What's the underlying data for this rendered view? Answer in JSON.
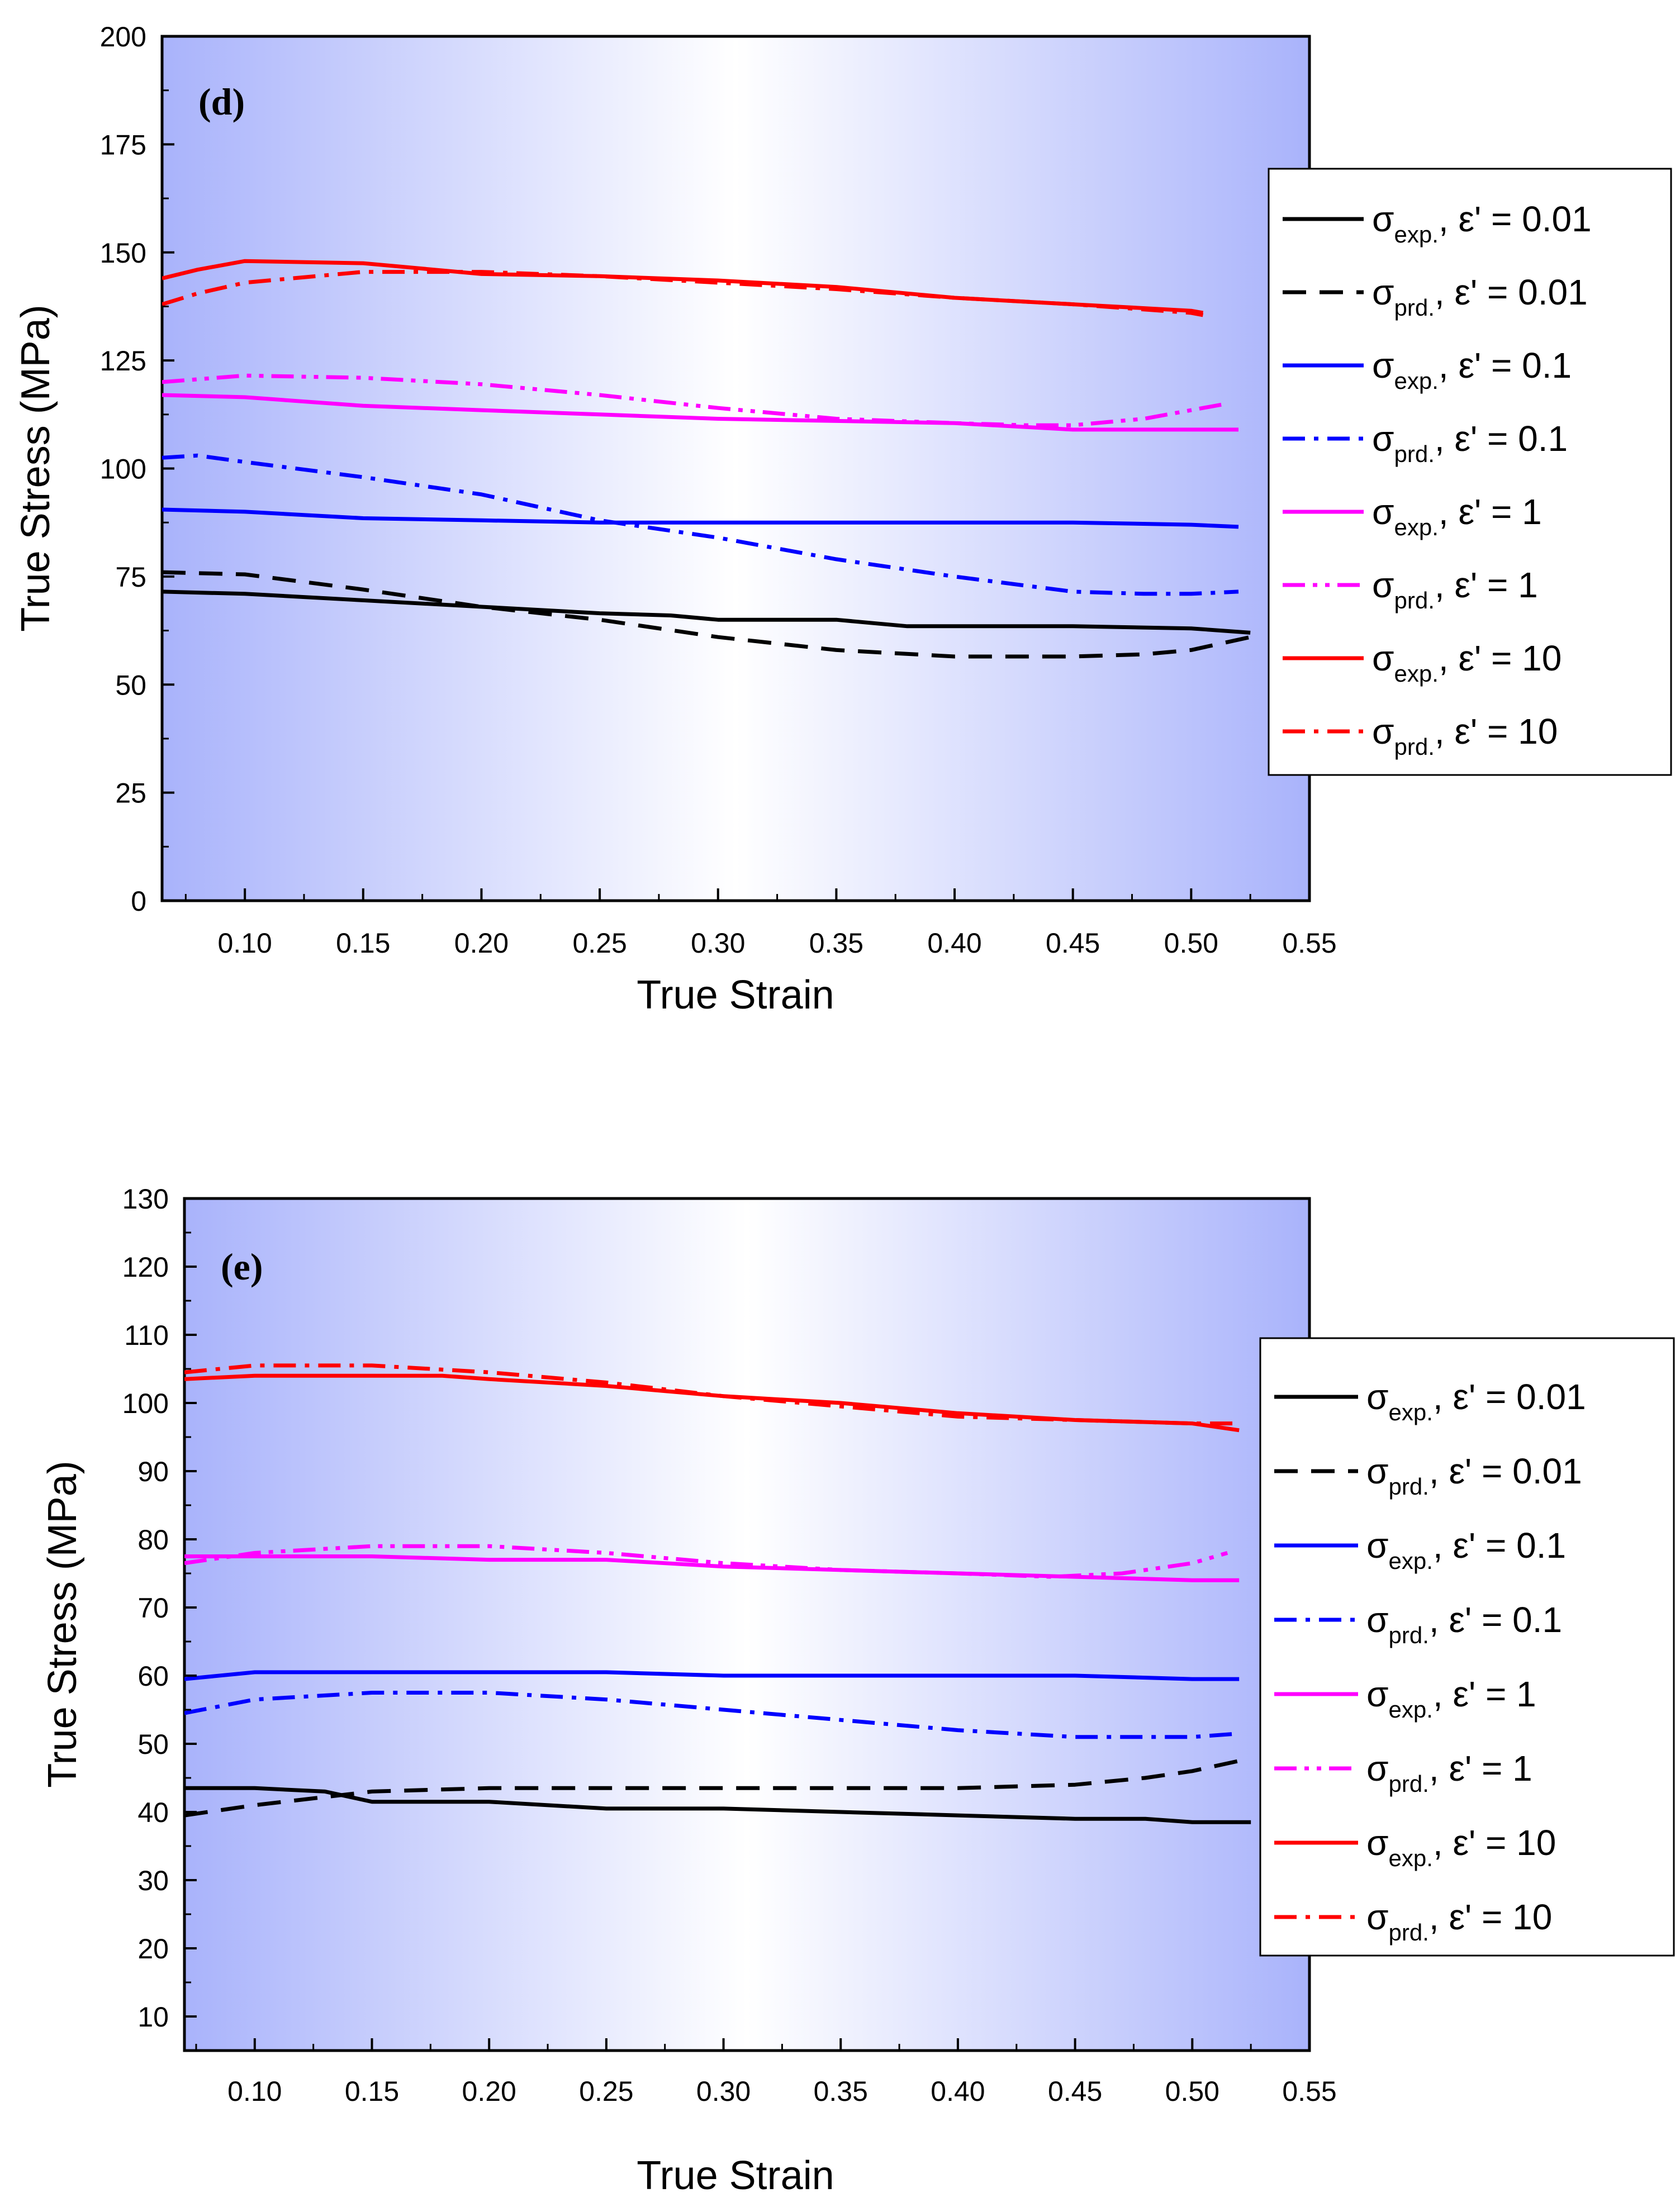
{
  "chart_data": [
    {
      "type": "line",
      "panel_label": "(d)",
      "xlabel": "True Strain",
      "ylabel": "True Stress (MPa)",
      "xlim": [
        0.065,
        0.55
      ],
      "ylim": [
        0,
        200
      ],
      "xticks": [
        "0.10",
        "0.15",
        "0.20",
        "0.25",
        "0.30",
        "0.35",
        "0.40",
        "0.45",
        "0.50",
        "0.55"
      ],
      "yticks": [
        "0",
        "25",
        "50",
        "75",
        "100",
        "125",
        "150",
        "175",
        "200"
      ],
      "legend_position": "right",
      "series": [
        {
          "name": "σexp., ε' = 0.01",
          "sigma": "σ",
          "sub": "exp.",
          "rate": ", ε' = 0.01",
          "color": "#000000",
          "style": "solid",
          "x": [
            0.065,
            0.1,
            0.15,
            0.2,
            0.25,
            0.28,
            0.3,
            0.35,
            0.38,
            0.4,
            0.45,
            0.5,
            0.525
          ],
          "y": [
            71.5,
            71,
            69.5,
            68,
            66.5,
            66,
            65,
            65,
            63.5,
            63.5,
            63.5,
            63,
            62
          ]
        },
        {
          "name": "σprd., ε' = 0.01",
          "sigma": "σ",
          "sub": "prd.",
          "rate": ", ε' = 0.01",
          "color": "#000000",
          "style": "dash",
          "x": [
            0.065,
            0.1,
            0.15,
            0.2,
            0.25,
            0.3,
            0.35,
            0.4,
            0.45,
            0.48,
            0.5,
            0.525
          ],
          "y": [
            76,
            75.5,
            72,
            68,
            65,
            61,
            58,
            56.5,
            56.5,
            57,
            58,
            61
          ]
        },
        {
          "name": "σexp., ε' = 0.1",
          "sigma": "σ",
          "sub": "exp.",
          "rate": ", ε' = 0.1",
          "color": "#0000ff",
          "style": "solid",
          "x": [
            0.065,
            0.1,
            0.15,
            0.2,
            0.25,
            0.3,
            0.35,
            0.4,
            0.45,
            0.5,
            0.52
          ],
          "y": [
            90.5,
            90,
            88.5,
            88,
            87.5,
            87.5,
            87.5,
            87.5,
            87.5,
            87,
            86.5
          ]
        },
        {
          "name": "σprd., ε' = 0.1",
          "sigma": "σ",
          "sub": "prd.",
          "rate": ", ε' = 0.1",
          "color": "#0000ff",
          "style": "dashdot",
          "x": [
            0.065,
            0.08,
            0.1,
            0.15,
            0.2,
            0.25,
            0.3,
            0.35,
            0.4,
            0.45,
            0.48,
            0.5,
            0.52
          ],
          "y": [
            102.5,
            103,
            101.5,
            98,
            94,
            88,
            84,
            79,
            75,
            71.5,
            71,
            71,
            71.5
          ]
        },
        {
          "name": "σexp., ε' = 1",
          "sigma": "σ",
          "sub": "exp.",
          "rate": ", ε' = 1",
          "color": "#ff00ff",
          "style": "solid",
          "x": [
            0.065,
            0.1,
            0.15,
            0.2,
            0.25,
            0.3,
            0.35,
            0.4,
            0.45,
            0.5,
            0.52
          ],
          "y": [
            117,
            116.5,
            114.5,
            113.5,
            112.5,
            111.5,
            111,
            110.5,
            109,
            109,
            109
          ]
        },
        {
          "name": "σprd., ε' = 1",
          "sigma": "σ",
          "sub": "prd.",
          "rate": ", ε' = 1",
          "color": "#ff00ff",
          "style": "dashdotdot",
          "x": [
            0.065,
            0.1,
            0.15,
            0.2,
            0.25,
            0.3,
            0.35,
            0.4,
            0.43,
            0.45,
            0.48,
            0.5,
            0.515
          ],
          "y": [
            120,
            121.5,
            121,
            119.5,
            117,
            114,
            111.5,
            110.5,
            110,
            110,
            111.5,
            113.5,
            115
          ]
        },
        {
          "name": "σexp., ε' = 10",
          "sigma": "σ",
          "sub": "exp.",
          "rate": ", ε' = 10",
          "color": "#ff0000",
          "style": "solid",
          "x": [
            0.065,
            0.08,
            0.1,
            0.15,
            0.2,
            0.25,
            0.3,
            0.35,
            0.4,
            0.45,
            0.5,
            0.505
          ],
          "y": [
            144,
            146,
            148,
            147.5,
            145,
            144.5,
            143.5,
            142,
            139.5,
            138,
            136.5,
            136
          ]
        },
        {
          "name": "σprd., ε' = 10",
          "sigma": "σ",
          "sub": "prd.",
          "rate": ", ε' = 10",
          "color": "#ff0000",
          "style": "dashdot",
          "x": [
            0.065,
            0.08,
            0.1,
            0.15,
            0.2,
            0.25,
            0.3,
            0.35,
            0.4,
            0.45,
            0.5,
            0.505
          ],
          "y": [
            138,
            140.5,
            143,
            145.5,
            145.5,
            144.5,
            143,
            141.5,
            139.5,
            138,
            136,
            135.5
          ]
        }
      ]
    },
    {
      "type": "line",
      "panel_label": "(e)",
      "xlabel": "True Strain",
      "ylabel": "True Stress (MPa)",
      "xlim": [
        0.07,
        0.55
      ],
      "ylim": [
        5,
        130
      ],
      "xticks": [
        "0.10",
        "0.15",
        "0.20",
        "0.25",
        "0.30",
        "0.35",
        "0.40",
        "0.45",
        "0.50",
        "0.55"
      ],
      "yticks": [
        "10",
        "20",
        "30",
        "40",
        "50",
        "60",
        "70",
        "80",
        "90",
        "100",
        "110",
        "120",
        "130"
      ],
      "legend_position": "right",
      "series": [
        {
          "name": "σexp., ε' = 0.01",
          "sigma": "σ",
          "sub": "exp.",
          "rate": ", ε' = 0.01",
          "color": "#000000",
          "style": "solid",
          "x": [
            0.07,
            0.1,
            0.13,
            0.15,
            0.2,
            0.25,
            0.3,
            0.35,
            0.4,
            0.45,
            0.48,
            0.5,
            0.525
          ],
          "y": [
            43.5,
            43.5,
            43,
            41.5,
            41.5,
            40.5,
            40.5,
            40,
            39.5,
            39,
            39,
            38.5,
            38.5
          ]
        },
        {
          "name": "σprd., ε' = 0.01",
          "sigma": "σ",
          "sub": "prd.",
          "rate": ", ε' = 0.01",
          "color": "#000000",
          "style": "dash",
          "x": [
            0.07,
            0.1,
            0.15,
            0.2,
            0.25,
            0.3,
            0.35,
            0.4,
            0.45,
            0.48,
            0.5,
            0.52
          ],
          "y": [
            39.5,
            41,
            43,
            43.5,
            43.5,
            43.5,
            43.5,
            43.5,
            44,
            45,
            46,
            47.5
          ]
        },
        {
          "name": "σexp., ε' = 0.1",
          "sigma": "σ",
          "sub": "exp.",
          "rate": ", ε' = 0.1",
          "color": "#0000ff",
          "style": "solid",
          "x": [
            0.07,
            0.1,
            0.15,
            0.2,
            0.25,
            0.3,
            0.35,
            0.4,
            0.45,
            0.5,
            0.52
          ],
          "y": [
            59.5,
            60.5,
            60.5,
            60.5,
            60.5,
            60,
            60,
            60,
            60,
            59.5,
            59.5
          ]
        },
        {
          "name": "σprd., ε' = 0.1",
          "sigma": "σ",
          "sub": "prd.",
          "rate": ", ε' = 0.1",
          "color": "#0000ff",
          "style": "dashdot",
          "x": [
            0.07,
            0.1,
            0.15,
            0.2,
            0.25,
            0.3,
            0.35,
            0.4,
            0.45,
            0.5,
            0.52
          ],
          "y": [
            54.5,
            56.5,
            57.5,
            57.5,
            56.5,
            55,
            53.5,
            52,
            51,
            51,
            51.5
          ]
        },
        {
          "name": "σexp., ε' = 1",
          "sigma": "σ",
          "sub": "exp.",
          "rate": ", ε' = 1",
          "color": "#ff00ff",
          "style": "solid",
          "x": [
            0.07,
            0.1,
            0.15,
            0.2,
            0.25,
            0.3,
            0.35,
            0.4,
            0.45,
            0.5,
            0.52
          ],
          "y": [
            77.5,
            77.5,
            77.5,
            77,
            77,
            76,
            75.5,
            75,
            74.5,
            74,
            74
          ]
        },
        {
          "name": "σprd., ε' = 1",
          "sigma": "σ",
          "sub": "prd.",
          "rate": ", ε' = 1",
          "color": "#ff00ff",
          "style": "dashdotdot",
          "x": [
            0.07,
            0.1,
            0.15,
            0.2,
            0.25,
            0.3,
            0.35,
            0.4,
            0.44,
            0.47,
            0.5,
            0.515
          ],
          "y": [
            76.5,
            78,
            79,
            79,
            78,
            76.5,
            75.5,
            75,
            74.5,
            75,
            76.5,
            78
          ]
        },
        {
          "name": "σexp., ε' = 10",
          "sigma": "σ",
          "sub": "exp.",
          "rate": ", ε' = 10",
          "color": "#ff0000",
          "style": "solid",
          "x": [
            0.07,
            0.1,
            0.15,
            0.18,
            0.2,
            0.25,
            0.3,
            0.35,
            0.4,
            0.45,
            0.5,
            0.52
          ],
          "y": [
            103.5,
            104,
            104,
            104,
            103.5,
            102.5,
            101,
            100,
            98.5,
            97.5,
            97,
            96
          ]
        },
        {
          "name": "σprd., ε' = 10",
          "sigma": "σ",
          "sub": "prd.",
          "rate": ", ε' = 10",
          "color": "#ff0000",
          "style": "dashdot",
          "x": [
            0.07,
            0.1,
            0.15,
            0.2,
            0.25,
            0.3,
            0.35,
            0.4,
            0.45,
            0.5,
            0.52
          ],
          "y": [
            104.5,
            105.5,
            105.5,
            104.5,
            103,
            101,
            99.5,
            98,
            97.5,
            97,
            97
          ]
        }
      ]
    }
  ]
}
